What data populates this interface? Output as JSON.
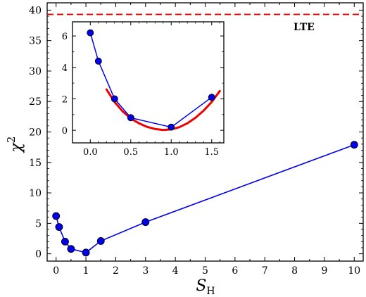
{
  "chart_data": [
    {
      "type": "scatter",
      "title": "",
      "xlabel": "S",
      "xlabel_sub": "H",
      "ylabel": "χ",
      "ylabel_sup": "2",
      "xlim": [
        -0.3,
        10.3
      ],
      "ylim": [
        -1.2,
        41.2
      ],
      "xticks": [
        0,
        1,
        2,
        3,
        4,
        5,
        6,
        7,
        8,
        9,
        10
      ],
      "yticks": [
        0,
        5,
        10,
        15,
        20,
        25,
        30,
        35,
        40
      ],
      "grid": false,
      "series": [
        {
          "x": [
            0,
            0.1,
            0.3,
            0.5,
            1,
            1.5,
            3,
            10
          ],
          "y": [
            6.2,
            4.4,
            2.0,
            0.8,
            0.2,
            2.1,
            5.2,
            17.9
          ],
          "color": "#0000ee",
          "marker": "circle",
          "line": "solid"
        }
      ],
      "reference_line": {
        "y": 39.3,
        "label": "LTE",
        "color": "#ee0000",
        "style": "dashed"
      }
    },
    {
      "type": "scatter",
      "inset": true,
      "title": "",
      "xlim": [
        -0.22,
        1.65
      ],
      "ylim": [
        -0.8,
        6.9
      ],
      "xticks": [
        0.0,
        0.5,
        1.0,
        1.5
      ],
      "xtick_labels": [
        "0.0",
        "0.5",
        "1.0",
        "1.5"
      ],
      "yticks": [
        0,
        2,
        4,
        6
      ],
      "grid": false,
      "series": [
        {
          "x": [
            0,
            0.1,
            0.3,
            0.5,
            1,
            1.5
          ],
          "y": [
            6.2,
            4.4,
            2.0,
            0.8,
            0.2,
            2.1
          ],
          "color": "#0000ee",
          "marker": "circle",
          "line": "solid"
        },
        {
          "type": "curve",
          "color": "#ee0000",
          "x": [
            0.2,
            0.3,
            0.4,
            0.5,
            0.6,
            0.7,
            0.8,
            0.9,
            1.0,
            1.1,
            1.2,
            1.3,
            1.4,
            1.5,
            1.6
          ],
          "y": [
            2.6,
            1.8,
            1.2,
            0.75,
            0.45,
            0.22,
            0.08,
            0.02,
            0.06,
            0.2,
            0.45,
            0.8,
            1.25,
            1.8,
            2.5
          ]
        }
      ]
    }
  ]
}
